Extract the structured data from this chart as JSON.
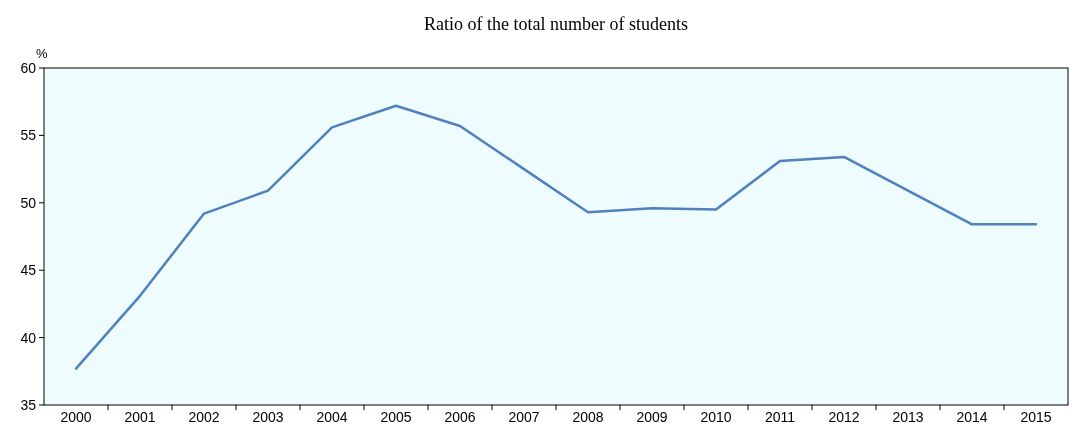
{
  "chart_data": {
    "type": "line",
    "title": "Ratio of the total number of students",
    "ylabel": "%",
    "categories": [
      "2000",
      "2001",
      "2002",
      "2003",
      "2004",
      "2005",
      "2006",
      "2007",
      "2008",
      "2009",
      "2010",
      "2011",
      "2012",
      "2013",
      "2014",
      "2015"
    ],
    "series": [
      {
        "color": "#4f81bd",
        "values": [
          37.7,
          43.1,
          49.2,
          50.9,
          55.6,
          57.2,
          55.7,
          52.5,
          49.3,
          49.6,
          49.5,
          53.1,
          53.4,
          50.9,
          48.4,
          48.4
        ]
      }
    ],
    "ylim": [
      35,
      60
    ],
    "yticks": [
      35,
      40,
      45,
      50,
      55,
      60
    ],
    "marker": "none",
    "line_style": "solid"
  }
}
